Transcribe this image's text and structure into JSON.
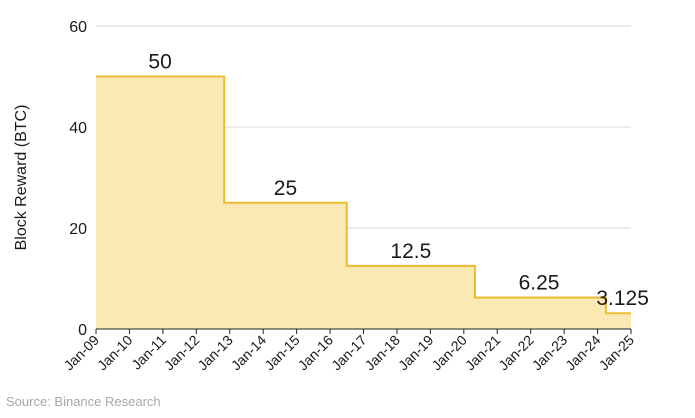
{
  "chart_data": {
    "type": "area",
    "step": "post",
    "ylabel": "Block Reward (BTC)",
    "ylim": [
      0,
      60
    ],
    "yticks": [
      0,
      20,
      40,
      60
    ],
    "xlim": [
      "2009-01",
      "2025-01"
    ],
    "xticks": [
      "Jan-09",
      "Jan-10",
      "Jan-11",
      "Jan-12",
      "Jan-13",
      "Jan-14",
      "Jan-15",
      "Jan-16",
      "Jan-17",
      "Jan-18",
      "Jan-19",
      "Jan-20",
      "Jan-21",
      "Jan-22",
      "Jan-23",
      "Jan-24",
      "Jan-25"
    ],
    "grid": true,
    "legend": "none",
    "series": [
      {
        "x": [
          "2009-01",
          "2012-11",
          "2016-07",
          "2020-05",
          "2024-04",
          "2025-01"
        ],
        "values": [
          50,
          25,
          12.5,
          6.25,
          3.125,
          3.125
        ]
      }
    ],
    "data_labels": [
      {
        "text": "50",
        "x": "2010-12",
        "y": 50
      },
      {
        "text": "25",
        "x": "2014-09",
        "y": 25
      },
      {
        "text": "12.5",
        "x": "2018-06",
        "y": 12.5
      },
      {
        "text": "6.25",
        "x": "2022-04",
        "y": 6.25
      },
      {
        "text": "3.125",
        "x": "2024-10",
        "y": 3.125
      }
    ],
    "colors": {
      "fill": "#fbe9b4",
      "line": "#e9bc35",
      "grid": "#d9d9d9",
      "axis": "#222222",
      "text": "#1a1a1a"
    }
  },
  "source": "Source: Binance Research"
}
